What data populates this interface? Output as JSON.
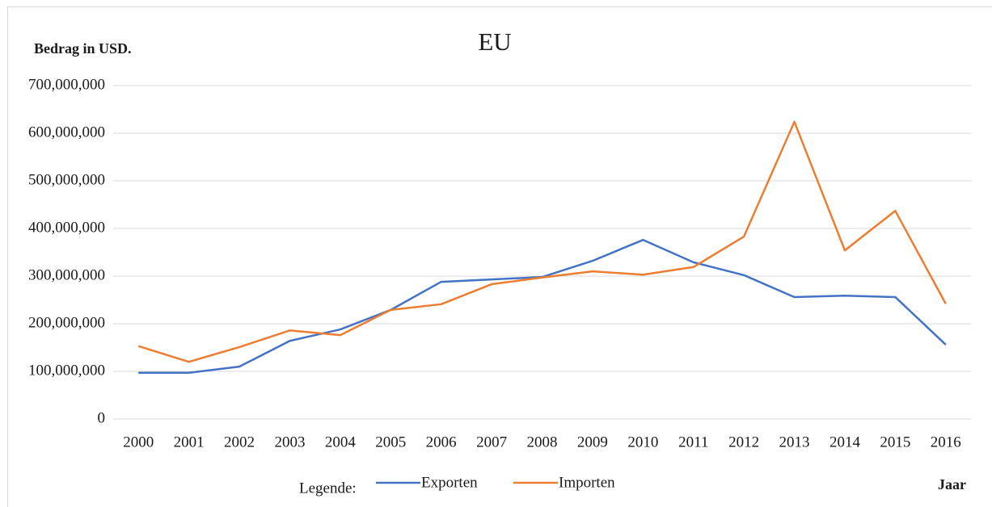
{
  "chart_data": {
    "type": "line",
    "title": "EU",
    "y_label": "Bedrag in USD.",
    "x_label": "Jaar",
    "legend_title": "Legende:",
    "categories": [
      "2000",
      "2001",
      "2002",
      "2003",
      "2004",
      "2005",
      "2006",
      "2007",
      "2008",
      "2009",
      "2010",
      "2011",
      "2012",
      "2013",
      "2014",
      "2015",
      "2016"
    ],
    "series": [
      {
        "name": "Exporten",
        "color": "#4472c4",
        "values": [
          97000000,
          97000000,
          110000000,
          164000000,
          188000000,
          229000000,
          288000000,
          293000000,
          298000000,
          332000000,
          376000000,
          329000000,
          302000000,
          256000000,
          259000000,
          256000000,
          156000000
        ]
      },
      {
        "name": "Importen",
        "color": "#ed7d31",
        "values": [
          153000000,
          120000000,
          151000000,
          186000000,
          176000000,
          229000000,
          241000000,
          283000000,
          297000000,
          310000000,
          303000000,
          319000000,
          383000000,
          624000000,
          354000000,
          437000000,
          242000000
        ]
      }
    ],
    "ylim": [
      0,
      700000000
    ],
    "yticks": [
      0,
      {
        "value": 100000000,
        "label": "100,000,000"
      },
      {
        "value": 200000000,
        "label": "200,000,000"
      },
      {
        "value": 300000000,
        "label": "300,000,000"
      },
      {
        "value": 400000000,
        "label": "400,000,000"
      },
      {
        "value": 500000000,
        "label": "500,000,000"
      },
      {
        "value": 600000000,
        "label": "600,000,000"
      },
      {
        "value": 700000000,
        "label": "700,000,000"
      }
    ],
    "grid": true
  }
}
